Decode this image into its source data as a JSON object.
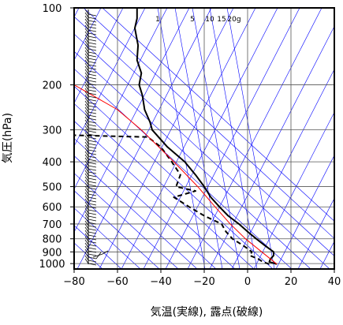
{
  "chart_data": {
    "type": "line",
    "diagram": "skew-T log-P",
    "xlabel": "気温(実線), 露点(破線)",
    "ylabel": "気圧(hPa)",
    "xlim": [
      -80,
      40
    ],
    "ylim": [
      1050,
      100
    ],
    "y_scale": "log",
    "x_ticks": [
      -80,
      -60,
      -40,
      -20,
      0,
      20,
      40
    ],
    "x_tick_labels": [
      "−80",
      "−60",
      "−40",
      "−20",
      "0",
      "20",
      "40"
    ],
    "y_ticks": [
      100,
      200,
      300,
      400,
      500,
      600,
      700,
      800,
      900,
      1000
    ],
    "y_tick_labels": [
      "100",
      "200",
      "300",
      "400",
      "500",
      "600",
      "700",
      "800",
      "900",
      "1000"
    ],
    "mixing_ratio_labels": [
      "1",
      "5",
      "10",
      "15",
      "20g"
    ],
    "colors": {
      "temperature": "#000000",
      "dewpoint": "#000000",
      "parcel": "#ff0000",
      "background_lines": "#0000ff",
      "grid": "#000000"
    },
    "grid": true,
    "series": [
      {
        "role": "temperature",
        "style": "solid",
        "points": [
          {
            "p": 1005,
            "t": 13.5
          },
          {
            "p": 985,
            "t": 10.0
          },
          {
            "p": 960,
            "t": 10.5
          },
          {
            "p": 930,
            "t": 12.0
          },
          {
            "p": 900,
            "t": 12.0
          },
          {
            "p": 850,
            "t": 8.0
          },
          {
            "p": 800,
            "t": 4.0
          },
          {
            "p": 750,
            "t": 0.0
          },
          {
            "p": 700,
            "t": -4.0
          },
          {
            "p": 650,
            "t": -9.0
          },
          {
            "p": 600,
            "t": -13.0
          },
          {
            "p": 550,
            "t": -17.0
          },
          {
            "p": 500,
            "t": -20.0
          },
          {
            "p": 450,
            "t": -24.0
          },
          {
            "p": 400,
            "t": -29.0
          },
          {
            "p": 350,
            "t": -37.0
          },
          {
            "p": 300,
            "t": -44.0
          },
          {
            "p": 280,
            "t": -45.0
          },
          {
            "p": 250,
            "t": -47.5
          },
          {
            "p": 220,
            "t": -48.5
          },
          {
            "p": 200,
            "t": -50.0
          },
          {
            "p": 180,
            "t": -49.0
          },
          {
            "p": 160,
            "t": -51.0
          },
          {
            "p": 140,
            "t": -50.5
          },
          {
            "p": 120,
            "t": -52.0
          },
          {
            "p": 110,
            "t": -51.0
          },
          {
            "p": 100,
            "t": -51.0
          }
        ]
      },
      {
        "role": "dewpoint",
        "style": "dashed",
        "points": [
          {
            "p": 1005,
            "t": 10.0
          },
          {
            "p": 985,
            "t": 7.0
          },
          {
            "p": 960,
            "t": 5.0
          },
          {
            "p": 930,
            "t": 1.0
          },
          {
            "p": 900,
            "t": 2.0
          },
          {
            "p": 850,
            "t": -2.0
          },
          {
            "p": 800,
            "t": -7.0
          },
          {
            "p": 750,
            "t": -10.0
          },
          {
            "p": 700,
            "t": -12.0
          },
          {
            "p": 650,
            "t": -20.0
          },
          {
            "p": 600,
            "t": -27.0
          },
          {
            "p": 550,
            "t": -34.0
          },
          {
            "p": 520,
            "t": -24.0
          },
          {
            "p": 500,
            "t": -33.0
          },
          {
            "p": 450,
            "t": -31.0
          },
          {
            "p": 400,
            "t": -35.0
          },
          {
            "p": 350,
            "t": -40.0
          },
          {
            "p": 320,
            "t": -46.0
          },
          {
            "p": 315,
            "t": -80.0
          }
        ]
      },
      {
        "role": "parcel",
        "style": "solid",
        "points": [
          {
            "p": 1005,
            "t": 13.5
          },
          {
            "p": 900,
            "t": 6.5
          },
          {
            "p": 800,
            "t": -1.0
          },
          {
            "p": 700,
            "t": -8.0
          },
          {
            "p": 600,
            "t": -15.0
          },
          {
            "p": 500,
            "t": -23.0
          },
          {
            "p": 400,
            "t": -34.0
          },
          {
            "p": 300,
            "t": -49.0
          },
          {
            "p": 250,
            "t": -60.0
          },
          {
            "p": 200,
            "t": -80.0
          }
        ]
      }
    ]
  }
}
